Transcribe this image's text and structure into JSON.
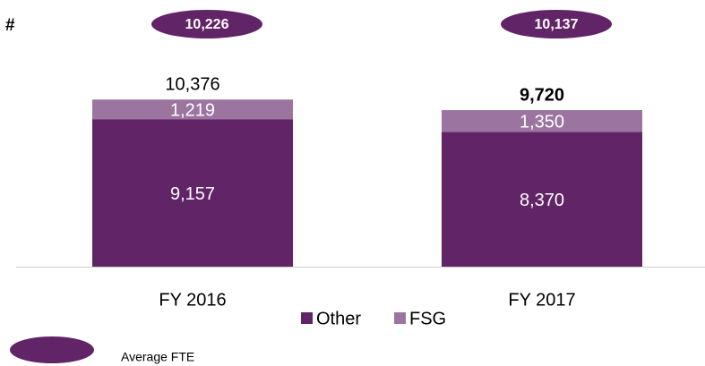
{
  "chart_data": {
    "type": "stacked_bar",
    "y_label": "#",
    "categories": [
      "FY 2016",
      "FY 2017"
    ],
    "series": [
      {
        "name": "Other",
        "color": "#612466",
        "values": [
          9157,
          8370
        ],
        "value_labels": [
          "9,157",
          "8,370"
        ]
      },
      {
        "name": "FSG",
        "color": "#9b75a0",
        "values": [
          1219,
          1350
        ],
        "value_labels": [
          "1,219",
          "1,350"
        ]
      }
    ],
    "totals": {
      "values": [
        10376,
        9720
      ],
      "value_labels": [
        "10,376",
        "9,720"
      ]
    },
    "averages": {
      "name": "Average FTE",
      "color": "#612466",
      "values": [
        10226,
        10137
      ],
      "value_labels": [
        "10,226",
        "10,137"
      ]
    }
  }
}
